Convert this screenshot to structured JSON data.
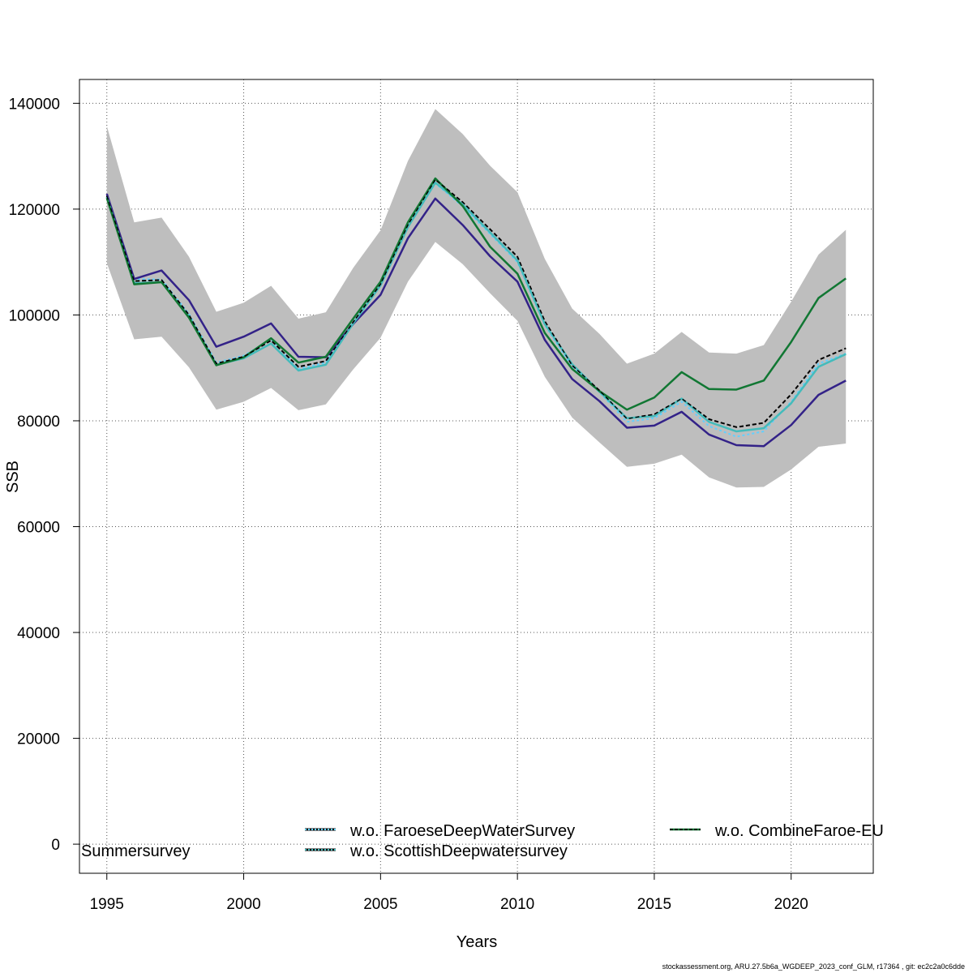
{
  "chart_data": {
    "type": "line",
    "xlabel": "Years",
    "ylabel": "SSB",
    "xlim": [
      1994,
      2023
    ],
    "ylim": [
      -5500,
      144500
    ],
    "x_ticks": [
      1995,
      2000,
      2005,
      2010,
      2015,
      2020
    ],
    "y_ticks": [
      0,
      20000,
      40000,
      60000,
      80000,
      100000,
      120000,
      140000
    ],
    "grid": true,
    "years": [
      1995,
      1996,
      1997,
      1998,
      1999,
      2000,
      2001,
      2002,
      2003,
      2004,
      2005,
      2006,
      2007,
      2008,
      2009,
      2010,
      2011,
      2012,
      2013,
      2014,
      2015,
      2016,
      2017,
      2018,
      2019,
      2020,
      2021,
      2022
    ],
    "confidence_band": {
      "color": "#bebebe",
      "upper": [
        135700,
        117500,
        118400,
        111000,
        100600,
        102300,
        105500,
        99300,
        100500,
        108900,
        116000,
        129100,
        138900,
        134200,
        128200,
        123200,
        110600,
        101200,
        96400,
        90800,
        92700,
        96800,
        92900,
        92700,
        94300,
        102500,
        111400,
        116100
      ],
      "lower": [
        109800,
        95400,
        95900,
        90100,
        82100,
        83600,
        86200,
        82000,
        83100,
        89700,
        95700,
        106300,
        113800,
        109600,
        104100,
        98900,
        88300,
        80600,
        75900,
        71300,
        71900,
        73600,
        69300,
        67400,
        67500,
        70800,
        75100,
        75700
      ]
    },
    "series": [
      {
        "name": "w.o. FaroeseDeepWaterSurvey",
        "color": "#61d0ff",
        "dash": "3,3",
        "width": 2,
        "values": [
          122800,
          106800,
          106700,
          100200,
          91000,
          92300,
          95400,
          89800,
          91000,
          98600,
          105700,
          116700,
          124900,
          120500,
          115300,
          110000,
          98100,
          90200,
          85400,
          79800,
          80500,
          83600,
          79000,
          77000,
          78000,
          83600,
          90800,
          92700
        ]
      },
      {
        "name": "w.o. CombineFaroe-EU",
        "color": "#000000",
        "dash": "5,3",
        "width": 2,
        "values": [
          122500,
          106400,
          106600,
          100000,
          90800,
          92100,
          95200,
          90200,
          91300,
          98600,
          105800,
          117000,
          125600,
          121300,
          116200,
          111000,
          98800,
          90500,
          85700,
          80400,
          81200,
          84200,
          80300,
          78800,
          79600,
          85000,
          91500,
          93700
        ]
      },
      {
        "name": "Summersurvey",
        "color": "#332288",
        "dash": null,
        "width": 2.5,
        "values": [
          122900,
          106800,
          108400,
          102800,
          94000,
          95900,
          98400,
          92100,
          92000,
          98300,
          103800,
          114500,
          122000,
          117000,
          111100,
          106300,
          95300,
          87900,
          83700,
          78700,
          79100,
          81700,
          77400,
          75400,
          75200,
          79200,
          84900,
          87600
        ]
      },
      {
        "name": "w.o. ScottishDeepwatersurvey",
        "color": "#44bbbb",
        "dash": null,
        "width": 2.5,
        "values": [
          122300,
          106000,
          106200,
          99800,
          90600,
          91800,
          94600,
          89500,
          90600,
          98400,
          105600,
          116600,
          125000,
          120900,
          115600,
          110300,
          98300,
          90700,
          85500,
          80500,
          80900,
          84200,
          79800,
          78000,
          78600,
          83300,
          90200,
          92600
        ]
      },
      {
        "name": "w.o. CombineFaroe-EU",
        "color": "#117733",
        "dash": null,
        "width": 2.5,
        "values": [
          122100,
          105800,
          106200,
          99500,
          90500,
          92000,
          95600,
          91000,
          92100,
          99300,
          106300,
          117500,
          125800,
          120600,
          112900,
          107800,
          96600,
          89800,
          85600,
          82100,
          84400,
          89200,
          86000,
          85900,
          87600,
          94900,
          103200,
          106900
        ]
      },
      {
        "name": "",
        "color": "#000000",
        "dash": "5,3",
        "width": 1.3,
        "values": [
          122500,
          106400,
          106600,
          100000,
          90800,
          92100,
          95200,
          90200,
          91300,
          98600,
          105800,
          117000,
          125600,
          121300,
          116200,
          111000,
          98800,
          90500,
          85700,
          80400,
          81200,
          84200,
          80300,
          78800,
          79600,
          85000,
          91500,
          93700
        ]
      }
    ],
    "legend": {
      "placement": "bottom",
      "entries": [
        {
          "label": "w.o. FaroeseDeepWaterSurvey",
          "color": "#61d0ff",
          "under": "#000000",
          "style": "dotted"
        },
        {
          "label": "w.o. CombineFaroe-EU",
          "color": "#117733",
          "under": "#000000",
          "style": "dashed-over-solid"
        },
        {
          "label": "w.o. ScottishDeepwatersurvey",
          "color": "#44bbbb",
          "under": "#000000",
          "style": "dotted"
        },
        {
          "label": "Summersurvey",
          "color": null,
          "style": "none"
        }
      ]
    }
  },
  "footer_text": "stockassessment.org, ARU.27.5b6a_WGDEEP_2023_conf_GLM, r17364 , git: ec2c2a0c6dde"
}
